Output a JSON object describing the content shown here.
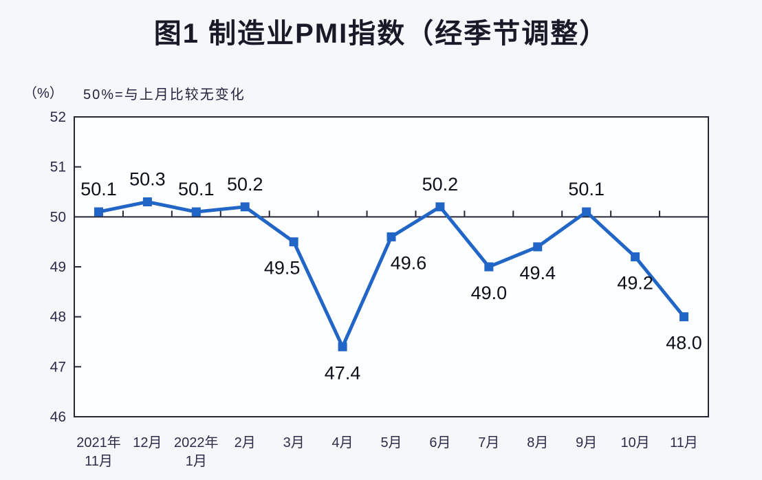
{
  "page": {
    "title": "图1 制造业PMI指数（经季节调整）"
  },
  "chart_data": {
    "type": "line",
    "title": "图1 制造业PMI指数（经季节调整）",
    "unit_label": "（%）",
    "note": "50%=与上月比较无变化",
    "categories": [
      [
        "2021年",
        "11月"
      ],
      [
        "12月"
      ],
      [
        "2022年",
        "1月"
      ],
      [
        "2月"
      ],
      [
        "3月"
      ],
      [
        "4月"
      ],
      [
        "5月"
      ],
      [
        "6月"
      ],
      [
        "7月"
      ],
      [
        "8月"
      ],
      [
        "9月"
      ],
      [
        "10月"
      ],
      [
        "11月"
      ]
    ],
    "series": [
      {
        "name": "制造业PMI指数",
        "values": [
          50.1,
          50.3,
          50.1,
          50.2,
          49.5,
          47.4,
          49.6,
          50.2,
          49.0,
          49.4,
          50.1,
          49.2,
          48.0
        ]
      }
    ],
    "value_labels": [
      "50.1",
      "50.3",
      "50.1",
      "50.2",
      "49.5",
      "47.4",
      "49.6",
      "50.2",
      "49.0",
      "49.4",
      "50.1",
      "49.2",
      "48.0"
    ],
    "label_positions": [
      "above",
      "above",
      "above",
      "above",
      "below-left",
      "below",
      "below-right",
      "above",
      "below",
      "below",
      "above",
      "below",
      "below"
    ],
    "ylim": [
      46,
      52
    ],
    "yticks": [
      46,
      47,
      48,
      49,
      50,
      51,
      52
    ],
    "reference_line": 50,
    "grid": false,
    "legend": "none",
    "colors": {
      "line": "#2165c6",
      "marker": "#2165c6",
      "axis": "#262637",
      "axis_text": "#2c2c49",
      "value_text": "#0f0f1a",
      "plot_bg": "#fcfeff",
      "page_bg": "#f4f8fb"
    }
  }
}
